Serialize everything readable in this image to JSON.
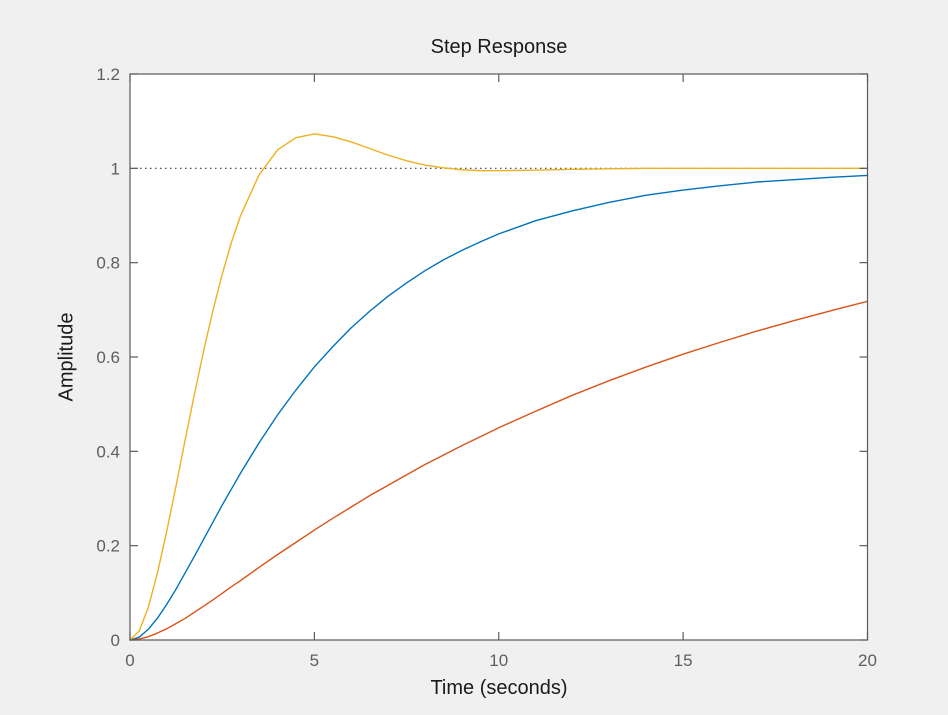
{
  "figure": {
    "background_color": "#F0F0F0",
    "plot_background_color": "#FFFFFF",
    "axis_color": "#5B5B5B",
    "tick_label_color": "#5E5E5E",
    "text_color": "#1A1A1A"
  },
  "chart_data": {
    "type": "line",
    "title": "Step Response",
    "xlabel": "Time (seconds)",
    "ylabel": "Amplitude",
    "xlim": [
      0,
      20
    ],
    "ylim": [
      0,
      1.2
    ],
    "xticks": [
      0,
      5,
      10,
      15,
      20
    ],
    "xtick_labels": [
      "0",
      "5",
      "10",
      "15",
      "20"
    ],
    "yticks": [
      0,
      0.2,
      0.4,
      0.6,
      0.8,
      1,
      1.2
    ],
    "ytick_labels": [
      "0",
      "0.2",
      "0.4",
      "0.6",
      "0.8",
      "1",
      "1.2"
    ],
    "grid": false,
    "legend": null,
    "steady_state_line": {
      "y": 1,
      "style": "dotted",
      "color": "#3D3D3D"
    },
    "t": [
      0,
      0.25,
      0.5,
      0.75,
      1,
      1.25,
      1.5,
      1.75,
      2,
      2.25,
      2.5,
      2.75,
      3,
      3.5,
      4,
      4.5,
      5,
      5.5,
      6,
      6.5,
      7,
      7.5,
      8,
      8.5,
      9,
      9.5,
      10,
      11,
      12,
      13,
      14,
      15,
      16,
      17,
      18,
      19,
      20
    ],
    "series": [
      {
        "name": "blue",
        "color": "#0072BD",
        "description": "medium-speed overdamped response, reaches 0.985 at t=20",
        "values": [
          0,
          0.006,
          0.023,
          0.047,
          0.076,
          0.108,
          0.143,
          0.178,
          0.214,
          0.25,
          0.286,
          0.32,
          0.354,
          0.418,
          0.477,
          0.53,
          0.579,
          0.622,
          0.662,
          0.697,
          0.729,
          0.757,
          0.783,
          0.806,
          0.826,
          0.844,
          0.861,
          0.889,
          0.91,
          0.928,
          0.943,
          0.954,
          0.963,
          0.971,
          0.976,
          0.981,
          0.985
        ]
      },
      {
        "name": "orange",
        "color": "#D95319",
        "description": "slow overdamped response, reaches 0.718 at t=20",
        "values": [
          0,
          0.002,
          0.007,
          0.015,
          0.024,
          0.035,
          0.046,
          0.059,
          0.072,
          0.085,
          0.099,
          0.113,
          0.126,
          0.154,
          0.181,
          0.207,
          0.233,
          0.258,
          0.282,
          0.306,
          0.328,
          0.35,
          0.372,
          0.392,
          0.412,
          0.431,
          0.45,
          0.485,
          0.519,
          0.55,
          0.579,
          0.606,
          0.631,
          0.655,
          0.677,
          0.698,
          0.718
        ]
      },
      {
        "name": "yellow",
        "color": "#EDB120",
        "description": "fast underdamped response, peak 1.073 at t=5, settles to 1",
        "values": [
          0,
          0.019,
          0.07,
          0.144,
          0.232,
          0.327,
          0.426,
          0.522,
          0.614,
          0.699,
          0.775,
          0.843,
          0.9,
          0.986,
          1.039,
          1.065,
          1.073,
          1.067,
          1.056,
          1.042,
          1.028,
          1.016,
          1.007,
          1.001,
          0.997,
          0.995,
          0.995,
          0.996,
          0.998,
          0.999,
          1.0,
          1.0,
          1.0,
          1.0,
          1.0,
          1.0,
          1.0
        ]
      }
    ]
  }
}
